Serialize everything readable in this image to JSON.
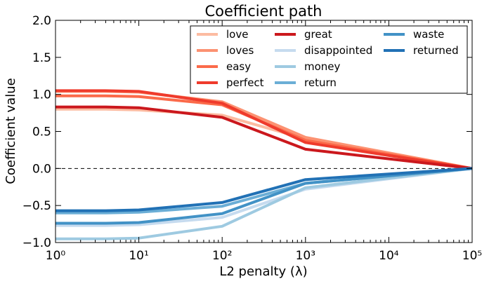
{
  "chart_data": {
    "type": "line",
    "title": "Coefficient path",
    "xlabel": "L2 penalty (λ)",
    "ylabel": "Coefficient value",
    "x_scale": "log",
    "xlim": [
      1,
      100000
    ],
    "ylim": [
      -1.0,
      2.0
    ],
    "x_tick_labels": [
      "10⁰",
      "10¹",
      "10²",
      "10³",
      "10⁴",
      "10⁵"
    ],
    "y_ticks": [
      -1.0,
      -0.5,
      0.0,
      0.5,
      1.0,
      1.5,
      2.0
    ],
    "y_tick_labels": [
      "−1.0",
      "−0.5",
      "0.0",
      "0.5",
      "1.0",
      "1.5",
      "2.0"
    ],
    "zero_line": {
      "y": 0.0,
      "style": "dashed",
      "color": "#000000"
    },
    "grid": false,
    "legend_position": "top-right",
    "x": [
      1,
      4,
      10,
      100,
      1000,
      100000
    ],
    "series": [
      {
        "name": "love",
        "color": "#fcbba1",
        "values": [
          0.8,
          0.8,
          0.79,
          0.72,
          0.4,
          0.0
        ]
      },
      {
        "name": "loves",
        "color": "#fc9272",
        "values": [
          1.04,
          1.04,
          1.03,
          0.9,
          0.42,
          0.0
        ]
      },
      {
        "name": "easy",
        "color": "#fb6a4a",
        "values": [
          0.98,
          0.98,
          0.97,
          0.86,
          0.38,
          0.0
        ]
      },
      {
        "name": "perfect",
        "color": "#ef3b2c",
        "values": [
          1.05,
          1.05,
          1.04,
          0.88,
          0.35,
          0.0
        ]
      },
      {
        "name": "great",
        "color": "#cb181d",
        "values": [
          0.83,
          0.83,
          0.82,
          0.69,
          0.26,
          0.0
        ]
      },
      {
        "name": "disappointed",
        "color": "#c6dbef",
        "values": [
          -0.77,
          -0.77,
          -0.76,
          -0.66,
          -0.28,
          0.0
        ]
      },
      {
        "name": "money",
        "color": "#9ecae1",
        "values": [
          -0.95,
          -0.95,
          -0.94,
          -0.78,
          -0.26,
          0.0
        ]
      },
      {
        "name": "return",
        "color": "#6baed6",
        "values": [
          -0.6,
          -0.6,
          -0.59,
          -0.51,
          -0.2,
          0.0
        ]
      },
      {
        "name": "waste",
        "color": "#4292c6",
        "values": [
          -0.74,
          -0.74,
          -0.73,
          -0.61,
          -0.2,
          0.0
        ]
      },
      {
        "name": "returned",
        "color": "#2171b5",
        "values": [
          -0.57,
          -0.57,
          -0.56,
          -0.46,
          -0.15,
          0.0
        ]
      }
    ]
  }
}
